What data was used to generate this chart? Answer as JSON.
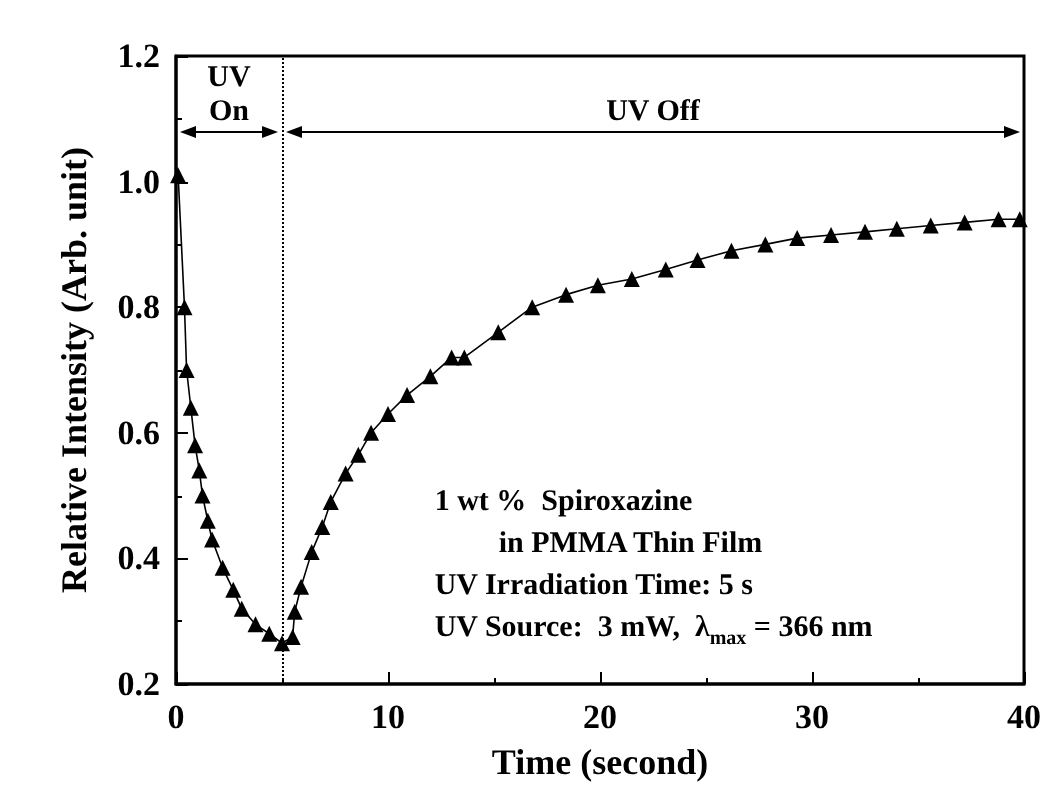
{
  "chart_data": {
    "type": "line",
    "xlabel": "Time (second)",
    "ylabel": "Relative Intensity (Arb. unit)",
    "xlim": [
      0,
      40
    ],
    "xticks": [
      0,
      10,
      20,
      30,
      40
    ],
    "ylim": [
      0.2,
      1.2
    ],
    "yticks": [
      0.2,
      0.4,
      0.6,
      0.8,
      {
        "value": 1,
        "label": "1.0"
      },
      1.2
    ],
    "grid": false,
    "marker": "triangle",
    "line_style": "solid",
    "series": [
      {
        "color": "#000000",
        "x": [
          0.1,
          0.4,
          0.5,
          0.7,
          0.9,
          1.1,
          1.25,
          1.5,
          1.7,
          2.2,
          2.7,
          3.1,
          3.75,
          4.4,
          5.0,
          5.5,
          5.6,
          5.9,
          6.4,
          6.9,
          7.3,
          8.0,
          8.6,
          9.2,
          10,
          10.9,
          12,
          13,
          13.6,
          15.2,
          16.8,
          18.4,
          19.9,
          21.5,
          23.1,
          24.6,
          26.2,
          27.8,
          29.3,
          30.9,
          32.5,
          34,
          35.6,
          37.2,
          38.8,
          39.8
        ],
        "values": [
          1.01,
          0.8,
          0.7,
          0.64,
          0.58,
          0.54,
          0.5,
          0.46,
          0.43,
          0.385,
          0.35,
          0.32,
          0.295,
          0.28,
          0.265,
          0.275,
          0.315,
          0.355,
          0.41,
          0.45,
          0.49,
          0.535,
          0.565,
          0.6,
          0.63,
          0.66,
          0.69,
          0.72,
          0.72,
          0.76,
          0.8,
          0.82,
          0.835,
          0.845,
          0.86,
          0.875,
          0.89,
          0.9,
          0.91,
          0.915,
          0.92,
          0.925,
          0.93,
          0.935,
          0.94,
          0.94
        ]
      }
    ],
    "ref_lines": [
      {
        "axis": "x",
        "value": 5,
        "line_style": "dotted"
      }
    ],
    "annotations": [
      "UV On",
      "UV Off",
      "1 wt %  Spiroxazine",
      "in PMMA Thin Film",
      "UV Irradiation Time: 5 s",
      "UV Source:  3 mW,  λ$_{max}$ = 366 nm"
    ]
  }
}
